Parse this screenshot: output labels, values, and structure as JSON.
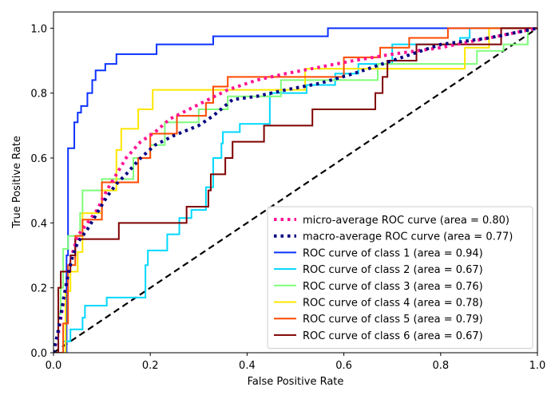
{
  "chart_data": {
    "type": "line",
    "title": "",
    "xlabel": "False Positive Rate",
    "ylabel": "True Positive Rate",
    "xlim": [
      0.0,
      1.0
    ],
    "ylim": [
      0.0,
      1.05
    ],
    "x_ticks": [
      "0.0",
      "0.2",
      "0.4",
      "0.6",
      "0.8",
      "1.0"
    ],
    "y_ticks": [
      "0.0",
      "0.2",
      "0.4",
      "0.6",
      "0.8",
      "1.0"
    ],
    "grid": false,
    "legend_position": "lower-right",
    "chance_line": {
      "x": [
        0,
        1
      ],
      "y": [
        0,
        1
      ],
      "color": "#000000",
      "style": "dashed"
    },
    "series": [
      {
        "name": "micro-average ROC curve (area = 0.80)",
        "color": "#ff1493",
        "style": "dotted",
        "points": [
          [
            0.0,
            0.0
          ],
          [
            0.01,
            0.06
          ],
          [
            0.02,
            0.15
          ],
          [
            0.03,
            0.24
          ],
          [
            0.04,
            0.31
          ],
          [
            0.05,
            0.36
          ],
          [
            0.07,
            0.4
          ],
          [
            0.09,
            0.44
          ],
          [
            0.11,
            0.5
          ],
          [
            0.13,
            0.55
          ],
          [
            0.15,
            0.6
          ],
          [
            0.18,
            0.65
          ],
          [
            0.21,
            0.68
          ],
          [
            0.24,
            0.72
          ],
          [
            0.28,
            0.75
          ],
          [
            0.32,
            0.78
          ],
          [
            0.36,
            0.81
          ],
          [
            0.42,
            0.84
          ],
          [
            0.48,
            0.86
          ],
          [
            0.55,
            0.88
          ],
          [
            0.62,
            0.9
          ],
          [
            0.7,
            0.92
          ],
          [
            0.8,
            0.94
          ],
          [
            0.9,
            0.97
          ],
          [
            1.0,
            1.0
          ]
        ]
      },
      {
        "name": "macro-average ROC curve (area = 0.77)",
        "color": "#000080",
        "style": "dotted",
        "points": [
          [
            0.0,
            0.0
          ],
          [
            0.01,
            0.07
          ],
          [
            0.02,
            0.16
          ],
          [
            0.03,
            0.24
          ],
          [
            0.04,
            0.3
          ],
          [
            0.05,
            0.34
          ],
          [
            0.07,
            0.38
          ],
          [
            0.09,
            0.43
          ],
          [
            0.11,
            0.48
          ],
          [
            0.13,
            0.52
          ],
          [
            0.15,
            0.55
          ],
          [
            0.18,
            0.6
          ],
          [
            0.21,
            0.64
          ],
          [
            0.25,
            0.67
          ],
          [
            0.3,
            0.7
          ],
          [
            0.33,
            0.73
          ],
          [
            0.37,
            0.78
          ],
          [
            0.42,
            0.79
          ],
          [
            0.48,
            0.81
          ],
          [
            0.55,
            0.83
          ],
          [
            0.62,
            0.86
          ],
          [
            0.7,
            0.9
          ],
          [
            0.8,
            0.95
          ],
          [
            0.9,
            0.97
          ],
          [
            1.0,
            1.0
          ]
        ]
      },
      {
        "name": "ROC curve of class 1 (area = 0.94)",
        "color": "#0a32ff",
        "style": "solid",
        "points": [
          [
            0.0,
            0.0
          ],
          [
            0.027,
            0.0
          ],
          [
            0.027,
            0.3
          ],
          [
            0.03,
            0.3
          ],
          [
            0.03,
            0.63
          ],
          [
            0.043,
            0.63
          ],
          [
            0.043,
            0.71
          ],
          [
            0.05,
            0.71
          ],
          [
            0.05,
            0.74
          ],
          [
            0.057,
            0.74
          ],
          [
            0.057,
            0.76
          ],
          [
            0.07,
            0.76
          ],
          [
            0.07,
            0.8
          ],
          [
            0.08,
            0.8
          ],
          [
            0.08,
            0.84
          ],
          [
            0.087,
            0.84
          ],
          [
            0.087,
            0.87
          ],
          [
            0.107,
            0.87
          ],
          [
            0.107,
            0.89
          ],
          [
            0.13,
            0.89
          ],
          [
            0.13,
            0.92
          ],
          [
            0.213,
            0.92
          ],
          [
            0.213,
            0.95
          ],
          [
            0.33,
            0.95
          ],
          [
            0.33,
            0.975
          ],
          [
            0.567,
            0.975
          ],
          [
            0.567,
            1.0
          ],
          [
            1.0,
            1.0
          ]
        ]
      },
      {
        "name": "ROC curve of class 2 (area = 0.67)",
        "color": "#00d8ff",
        "style": "solid",
        "points": [
          [
            0.0,
            0.0
          ],
          [
            0.02,
            0.0
          ],
          [
            0.02,
            0.035
          ],
          [
            0.035,
            0.035
          ],
          [
            0.035,
            0.072
          ],
          [
            0.06,
            0.072
          ],
          [
            0.06,
            0.108
          ],
          [
            0.065,
            0.108
          ],
          [
            0.065,
            0.145
          ],
          [
            0.11,
            0.145
          ],
          [
            0.11,
            0.17
          ],
          [
            0.19,
            0.17
          ],
          [
            0.19,
            0.27
          ],
          [
            0.195,
            0.27
          ],
          [
            0.195,
            0.315
          ],
          [
            0.235,
            0.315
          ],
          [
            0.235,
            0.365
          ],
          [
            0.26,
            0.365
          ],
          [
            0.26,
            0.415
          ],
          [
            0.285,
            0.415
          ],
          [
            0.285,
            0.44
          ],
          [
            0.315,
            0.44
          ],
          [
            0.315,
            0.51
          ],
          [
            0.33,
            0.51
          ],
          [
            0.33,
            0.6
          ],
          [
            0.347,
            0.6
          ],
          [
            0.347,
            0.645
          ],
          [
            0.35,
            0.645
          ],
          [
            0.35,
            0.68
          ],
          [
            0.385,
            0.68
          ],
          [
            0.385,
            0.705
          ],
          [
            0.447,
            0.705
          ],
          [
            0.447,
            0.8
          ],
          [
            0.523,
            0.8
          ],
          [
            0.523,
            0.825
          ],
          [
            0.582,
            0.825
          ],
          [
            0.582,
            0.86
          ],
          [
            0.63,
            0.86
          ],
          [
            0.63,
            0.89
          ],
          [
            0.7,
            0.89
          ],
          [
            0.7,
            0.95
          ],
          [
            0.84,
            0.95
          ],
          [
            0.84,
            0.97
          ],
          [
            0.86,
            0.97
          ],
          [
            0.86,
            1.0
          ],
          [
            1.0,
            1.0
          ]
        ]
      },
      {
        "name": "ROC curve of class 3 (area = 0.76)",
        "color": "#7dff7a",
        "style": "solid",
        "points": [
          [
            0.0,
            0.0
          ],
          [
            0.01,
            0.0
          ],
          [
            0.01,
            0.12
          ],
          [
            0.015,
            0.12
          ],
          [
            0.015,
            0.2
          ],
          [
            0.02,
            0.2
          ],
          [
            0.02,
            0.32
          ],
          [
            0.03,
            0.32
          ],
          [
            0.03,
            0.36
          ],
          [
            0.055,
            0.36
          ],
          [
            0.055,
            0.43
          ],
          [
            0.06,
            0.43
          ],
          [
            0.06,
            0.5
          ],
          [
            0.1,
            0.5
          ],
          [
            0.1,
            0.535
          ],
          [
            0.165,
            0.535
          ],
          [
            0.165,
            0.6
          ],
          [
            0.2,
            0.6
          ],
          [
            0.2,
            0.64
          ],
          [
            0.23,
            0.64
          ],
          [
            0.23,
            0.71
          ],
          [
            0.3,
            0.71
          ],
          [
            0.3,
            0.75
          ],
          [
            0.36,
            0.75
          ],
          [
            0.36,
            0.79
          ],
          [
            0.47,
            0.79
          ],
          [
            0.47,
            0.84
          ],
          [
            0.67,
            0.84
          ],
          [
            0.67,
            0.89
          ],
          [
            0.875,
            0.89
          ],
          [
            0.875,
            0.93
          ],
          [
            0.93,
            0.93
          ],
          [
            0.93,
            0.95
          ],
          [
            0.98,
            0.95
          ],
          [
            0.98,
            1.0
          ],
          [
            1.0,
            1.0
          ]
        ]
      },
      {
        "name": "ROC curve of class 4 (area = 0.78)",
        "color": "#ffe600",
        "style": "solid",
        "points": [
          [
            0.0,
            0.0
          ],
          [
            0.025,
            0.0
          ],
          [
            0.025,
            0.19
          ],
          [
            0.035,
            0.19
          ],
          [
            0.035,
            0.25
          ],
          [
            0.05,
            0.25
          ],
          [
            0.05,
            0.31
          ],
          [
            0.06,
            0.31
          ],
          [
            0.06,
            0.43
          ],
          [
            0.1,
            0.43
          ],
          [
            0.1,
            0.5
          ],
          [
            0.13,
            0.5
          ],
          [
            0.13,
            0.625
          ],
          [
            0.14,
            0.625
          ],
          [
            0.14,
            0.69
          ],
          [
            0.175,
            0.69
          ],
          [
            0.175,
            0.75
          ],
          [
            0.205,
            0.75
          ],
          [
            0.205,
            0.81
          ],
          [
            0.52,
            0.81
          ],
          [
            0.52,
            0.875
          ],
          [
            0.85,
            0.875
          ],
          [
            0.85,
            0.94
          ],
          [
            0.9,
            0.94
          ],
          [
            0.9,
            1.0
          ],
          [
            1.0,
            1.0
          ]
        ]
      },
      {
        "name": "ROC curve of class 5 (area = 0.79)",
        "color": "#ff4a00",
        "style": "solid",
        "points": [
          [
            0.0,
            0.0
          ],
          [
            0.02,
            0.0
          ],
          [
            0.02,
            0.09
          ],
          [
            0.03,
            0.09
          ],
          [
            0.03,
            0.27
          ],
          [
            0.045,
            0.27
          ],
          [
            0.045,
            0.36
          ],
          [
            0.06,
            0.36
          ],
          [
            0.06,
            0.41
          ],
          [
            0.1,
            0.41
          ],
          [
            0.1,
            0.525
          ],
          [
            0.175,
            0.525
          ],
          [
            0.175,
            0.6
          ],
          [
            0.2,
            0.6
          ],
          [
            0.2,
            0.675
          ],
          [
            0.255,
            0.675
          ],
          [
            0.255,
            0.73
          ],
          [
            0.315,
            0.73
          ],
          [
            0.315,
            0.77
          ],
          [
            0.33,
            0.77
          ],
          [
            0.33,
            0.82
          ],
          [
            0.36,
            0.82
          ],
          [
            0.36,
            0.85
          ],
          [
            0.6,
            0.85
          ],
          [
            0.6,
            0.91
          ],
          [
            0.675,
            0.91
          ],
          [
            0.675,
            0.94
          ],
          [
            0.735,
            0.94
          ],
          [
            0.735,
            0.97
          ],
          [
            0.815,
            0.97
          ],
          [
            0.815,
            1.0
          ],
          [
            1.0,
            1.0
          ]
        ]
      },
      {
        "name": "ROC curve of class 6 (area = 0.67)",
        "color": "#7f0000",
        "style": "solid",
        "points": [
          [
            0.0,
            0.0
          ],
          [
            0.01,
            0.0
          ],
          [
            0.01,
            0.2
          ],
          [
            0.015,
            0.2
          ],
          [
            0.015,
            0.25
          ],
          [
            0.035,
            0.25
          ],
          [
            0.035,
            0.3
          ],
          [
            0.045,
            0.3
          ],
          [
            0.045,
            0.35
          ],
          [
            0.135,
            0.35
          ],
          [
            0.135,
            0.4
          ],
          [
            0.275,
            0.4
          ],
          [
            0.275,
            0.45
          ],
          [
            0.32,
            0.45
          ],
          [
            0.32,
            0.5
          ],
          [
            0.325,
            0.5
          ],
          [
            0.325,
            0.55
          ],
          [
            0.355,
            0.55
          ],
          [
            0.355,
            0.6
          ],
          [
            0.37,
            0.6
          ],
          [
            0.37,
            0.65
          ],
          [
            0.435,
            0.65
          ],
          [
            0.435,
            0.7
          ],
          [
            0.535,
            0.7
          ],
          [
            0.535,
            0.75
          ],
          [
            0.665,
            0.75
          ],
          [
            0.665,
            0.8
          ],
          [
            0.68,
            0.8
          ],
          [
            0.68,
            0.85
          ],
          [
            0.69,
            0.85
          ],
          [
            0.69,
            0.9
          ],
          [
            0.75,
            0.9
          ],
          [
            0.75,
            0.95
          ],
          [
            0.925,
            0.95
          ],
          [
            0.925,
            1.0
          ],
          [
            1.0,
            1.0
          ]
        ]
      }
    ]
  }
}
